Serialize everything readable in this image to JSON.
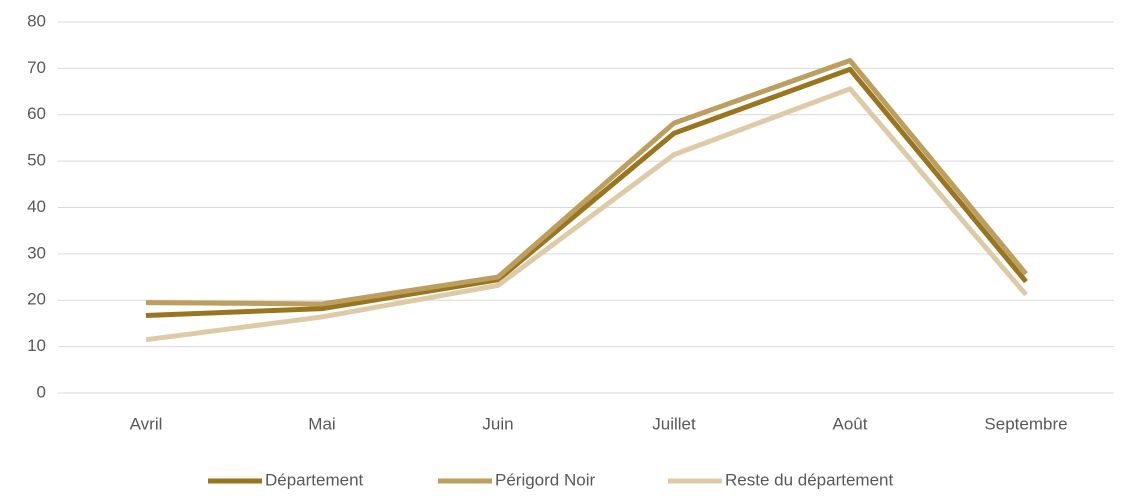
{
  "chart_data": {
    "type": "line",
    "categories": [
      "Avril",
      "Mai",
      "Juin",
      "Juillet",
      "Août",
      "Septembre"
    ],
    "series": [
      {
        "name": "Département",
        "color": "#9a7520",
        "values": [
          16.7,
          18.2,
          24.4,
          56,
          69.8,
          24
        ]
      },
      {
        "name": "Périgord Noir",
        "color": "#bc9f5f",
        "values": [
          19.5,
          19.2,
          25,
          58.2,
          71.7,
          25.7
        ]
      },
      {
        "name": "Reste du département",
        "color": "#dccba6",
        "values": [
          11.5,
          16.4,
          23.2,
          51.4,
          65.6,
          21.2
        ]
      }
    ],
    "ylim": [
      0,
      80
    ],
    "yticks": [
      0,
      10,
      20,
      30,
      40,
      50,
      60,
      70,
      80
    ],
    "grid": true,
    "legend": "bottom"
  }
}
